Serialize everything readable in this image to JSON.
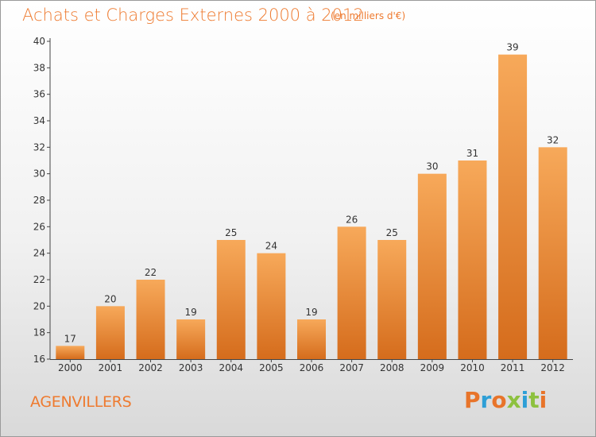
{
  "chart_data": {
    "type": "bar",
    "title": "Achats et Charges Externes 2000 à 2012",
    "subtitle": "(en milliers d'€)",
    "categories": [
      "2000",
      "2001",
      "2002",
      "2003",
      "2004",
      "2005",
      "2006",
      "2007",
      "2008",
      "2009",
      "2010",
      "2011",
      "2012"
    ],
    "values": [
      17,
      20,
      22,
      19,
      25,
      24,
      19,
      26,
      25,
      30,
      31,
      39,
      32
    ],
    "ylim": [
      16,
      40
    ],
    "yticks": [
      16,
      18,
      20,
      22,
      24,
      26,
      28,
      30,
      32,
      34,
      36,
      38,
      40
    ],
    "grid": false,
    "colors": {
      "bar_top": "#f7a95a",
      "bar_bottom": "#d56c1c",
      "text": "#333333",
      "title": "#ee7a2f"
    }
  },
  "footer": {
    "commune": "AGENVILLERS",
    "logo_text": "Proxiti",
    "logo_colors": [
      "#e8742a",
      "#2e9fd6",
      "#e8742a",
      "#8dc13f",
      "#2e9fd6",
      "#8dc13f",
      "#e8742a"
    ]
  }
}
